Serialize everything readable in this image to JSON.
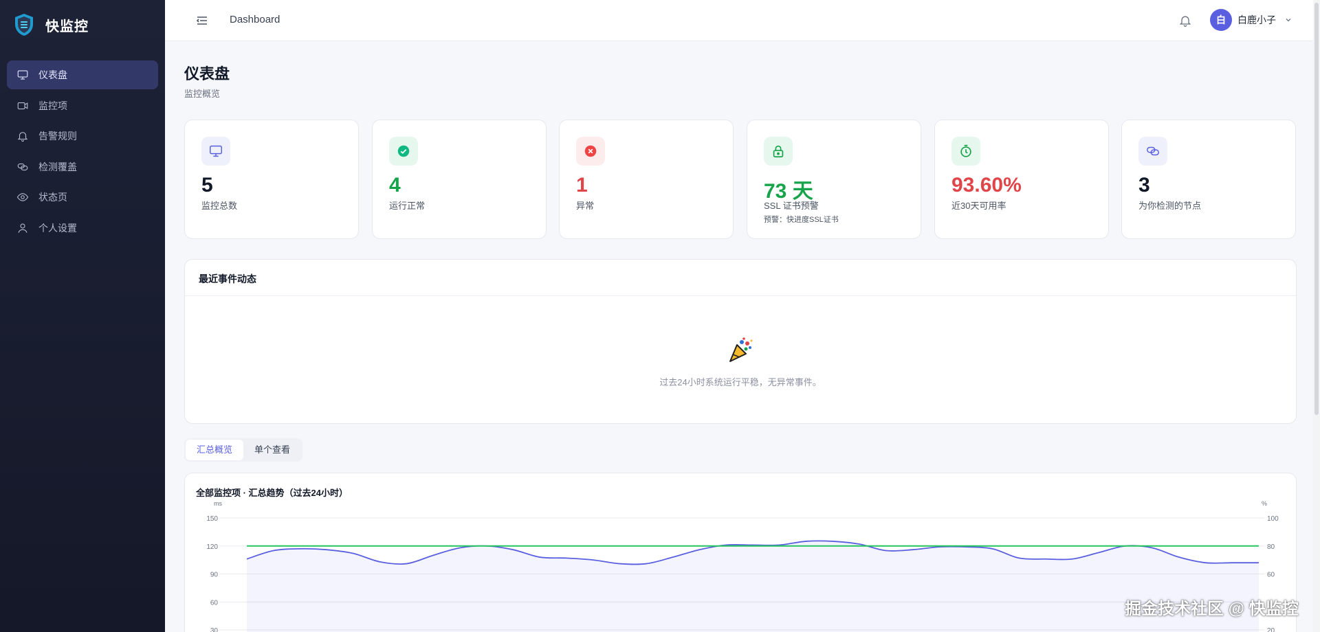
{
  "brand": {
    "name": "快监控"
  },
  "sidebar": {
    "items": [
      {
        "label": "仪表盘",
        "icon": "monitor-icon"
      },
      {
        "label": "监控项",
        "icon": "camera-icon"
      },
      {
        "label": "告警规则",
        "icon": "bell-icon"
      },
      {
        "label": "检测覆盖",
        "icon": "link-icon"
      },
      {
        "label": "状态页",
        "icon": "eye-icon"
      },
      {
        "label": "个人设置",
        "icon": "user-icon"
      }
    ]
  },
  "header": {
    "breadcrumb": "Dashboard",
    "user": {
      "avatar_letter": "白",
      "name": "白鹿小子"
    }
  },
  "page": {
    "title": "仪表盘",
    "subtitle": "监控概览"
  },
  "stats": [
    {
      "value": "5",
      "label": "监控总数",
      "icon": "monitor-icon",
      "color": "#111827"
    },
    {
      "value": "4",
      "label": "运行正常",
      "icon": "check-circle-icon",
      "color": "#16a34a"
    },
    {
      "value": "1",
      "label": "异常",
      "icon": "x-circle-icon",
      "color": "#e0454a"
    },
    {
      "value": "73 天",
      "label": "SSL 证书预警",
      "note": "预警：快进度SSL证书",
      "icon": "lock-icon",
      "color": "#16a34a"
    },
    {
      "value": "93.60%",
      "label": "近30天可用率",
      "icon": "timer-icon",
      "color": "#e0454a"
    },
    {
      "value": "3",
      "label": "为你检测的节点",
      "icon": "link-icon",
      "color": "#111827"
    }
  ],
  "events": {
    "title": "最近事件动态",
    "empty_text": "过去24小时系统运行平稳，无异常事件。",
    "icon": "party-popper-icon"
  },
  "tabs": [
    {
      "label": "汇总概览",
      "active": true
    },
    {
      "label": "单个查看",
      "active": false
    }
  ],
  "chart_data": {
    "type": "line",
    "title": "全部监控项 · 汇总趋势（过去24小时）",
    "y_left": {
      "unit": "ms",
      "ticks": [
        150,
        120,
        90,
        60,
        30
      ],
      "range": [
        0,
        150
      ]
    },
    "y_right": {
      "unit": "%",
      "ticks": [
        100,
        80,
        60,
        20
      ],
      "range": [
        0,
        100
      ]
    },
    "series": [
      {
        "axis": "left",
        "color": "#5a5fe0",
        "values": [
          106,
          115,
          117,
          116,
          112,
          103,
          101,
          110,
          118,
          120,
          116,
          108,
          107,
          105,
          101,
          101,
          108,
          116,
          121,
          121,
          121,
          125,
          125,
          122,
          115,
          116,
          119,
          119,
          117,
          107,
          106,
          106,
          113,
          120,
          118,
          108,
          102,
          102,
          102
        ]
      },
      {
        "axis": "right",
        "color": "#22c55e",
        "values": [
          80,
          80,
          80,
          80,
          80,
          80,
          80,
          80,
          80,
          80,
          80,
          80,
          80,
          80,
          80,
          80,
          80,
          80,
          80,
          80,
          80,
          80,
          80,
          80,
          80,
          80,
          80,
          80,
          80,
          80,
          80,
          80,
          80,
          80,
          80,
          80,
          80,
          80,
          80
        ]
      }
    ]
  },
  "watermark": "掘金技术社区 @ 快监控",
  "colors": {
    "accent": "#5a5fe0",
    "success": "#16a34a",
    "danger": "#e0454a",
    "sidebar_bg": "#1e2237"
  }
}
